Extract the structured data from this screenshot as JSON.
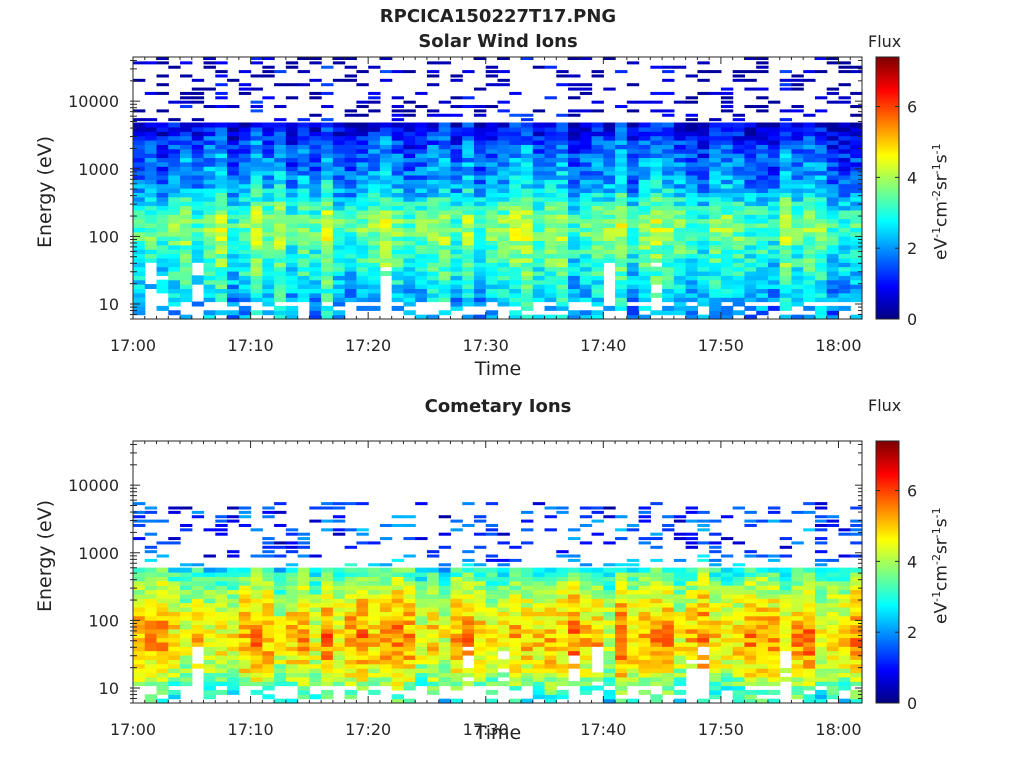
{
  "figure": {
    "title": "RPCICA150227T17.PNG"
  },
  "colormap": {
    "stops": [
      "#00007f",
      "#0000ff",
      "#007fff",
      "#00ffff",
      "#7fff7f",
      "#ffff00",
      "#ff7f00",
      "#ff0000",
      "#7f0000"
    ]
  },
  "chart_data": [
    {
      "type": "heatmap",
      "title": "Solar Wind Ions",
      "xlabel": "Time",
      "ylabel": "Energy (eV)",
      "x_tick_labels": [
        "17:00",
        "17:10",
        "17:20",
        "17:30",
        "17:40",
        "17:50",
        "18:00"
      ],
      "x_ticks_minutes": [
        0,
        10,
        20,
        30,
        40,
        50,
        60
      ],
      "xlim_minutes": [
        0,
        62
      ],
      "y_scale": "log",
      "y_tick_labels": [
        "10",
        "100",
        "1000",
        "10000"
      ],
      "y_ticks": [
        10,
        100,
        1000,
        10000
      ],
      "ylim": [
        6,
        45000
      ],
      "colorbar": {
        "title": "Flux",
        "label": "eV-1cm-2sr-1s-1",
        "range": [
          0,
          7.4
        ],
        "ticks": [
          0,
          2,
          4,
          6
        ]
      },
      "profile": {
        "description_values_log10_energy_vs_flux": [
          [
            0.85,
            2.2
          ],
          [
            1.1,
            2.4
          ],
          [
            1.35,
            2.8
          ],
          [
            1.6,
            3.1
          ],
          [
            1.85,
            3.3
          ],
          [
            2.0,
            3.6
          ],
          [
            2.15,
            3.7
          ],
          [
            2.35,
            3.4
          ],
          [
            2.6,
            2.6
          ],
          [
            2.85,
            2.0
          ],
          [
            3.1,
            1.8
          ],
          [
            3.35,
            1.5
          ],
          [
            3.6,
            0.9
          ],
          [
            3.85,
            0.5
          ],
          [
            4.1,
            0.4
          ],
          [
            4.4,
            0.35
          ],
          [
            4.6,
            0.3
          ]
        ],
        "dense_upper_log10_energy": 3.7,
        "sparse_upper_log10_energy": 4.65
      }
    },
    {
      "type": "heatmap",
      "title": "Cometary Ions",
      "xlabel": "Time",
      "ylabel": "Energy (eV)",
      "x_tick_labels": [
        "17:00",
        "17:10",
        "17:20",
        "17:30",
        "17:40",
        "17:50",
        "18:00"
      ],
      "x_ticks_minutes": [
        0,
        10,
        20,
        30,
        40,
        50,
        60
      ],
      "xlim_minutes": [
        0,
        62
      ],
      "y_scale": "log",
      "y_tick_labels": [
        "10",
        "100",
        "1000",
        "10000"
      ],
      "y_ticks": [
        10,
        100,
        1000,
        10000
      ],
      "ylim": [
        6,
        45000
      ],
      "colorbar": {
        "title": "Flux",
        "label": "eV-1cm-2sr-1s-1",
        "range": [
          0,
          7.4
        ],
        "ticks": [
          0,
          2,
          4,
          6
        ]
      },
      "profile": {
        "description_values_log10_energy_vs_flux": [
          [
            0.85,
            3.0
          ],
          [
            1.0,
            3.4
          ],
          [
            1.2,
            4.2
          ],
          [
            1.4,
            4.7
          ],
          [
            1.6,
            5.0
          ],
          [
            1.8,
            5.0
          ],
          [
            2.0,
            4.8
          ],
          [
            2.2,
            4.5
          ],
          [
            2.4,
            4.1
          ],
          [
            2.6,
            3.6
          ],
          [
            2.75,
            3.0
          ],
          [
            2.9,
            1.6
          ],
          [
            3.05,
            1.2
          ],
          [
            3.3,
            1.3
          ],
          [
            3.45,
            1.5
          ],
          [
            3.7,
            1.2
          ],
          [
            4.4,
            0.5
          ]
        ],
        "dense_upper_log10_energy": 2.78,
        "sparse_upper_log10_energy": 3.75
      }
    }
  ]
}
